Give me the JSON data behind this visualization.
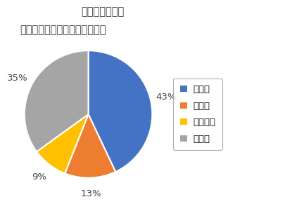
{
  "title_line1": "ガーベラ出荷量",
  "title_line2": "全国に占める割合（令和３年）",
  "labels": [
    "静岡県",
    "福岡県",
    "和歌山県",
    "その他"
  ],
  "values": [
    43,
    13,
    9,
    35
  ],
  "colors": [
    "#4472C4",
    "#ED7D31",
    "#FFC000",
    "#A5A5A5"
  ],
  "background_color": "#FFFFFF",
  "legend_labels": [
    "静岡県",
    "福岡県",
    "和歌山県",
    "その他"
  ],
  "startangle": 90,
  "title_fontsize": 10.5,
  "legend_fontsize": 9.5,
  "pct_fontsize": 9.5
}
